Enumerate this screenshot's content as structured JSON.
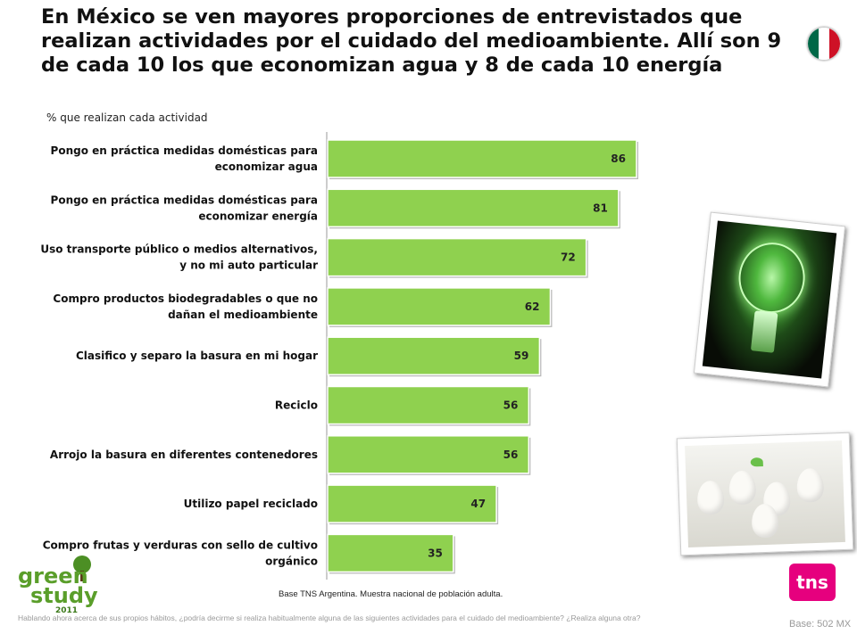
{
  "header": {
    "title": "En México se ven mayores proporciones de entrevistados que realizan actividades por el cuidado del medioambiente. Allí son 9 de cada 10 los que economizan agua y 8 de cada 10 energía",
    "subtitle": "% que realizan cada actividad"
  },
  "flag_colors": [
    "#006847",
    "#ffffff",
    "#ce1126"
  ],
  "chart_data": {
    "type": "bar",
    "orientation": "horizontal",
    "categories": [
      [
        "Pongo en práctica medidas domésticas para",
        "economizar agua"
      ],
      [
        "Pongo en práctica medidas domésticas para",
        "economizar energía"
      ],
      [
        "Uso transporte público o medios alternativos,",
        "y no mi auto particular"
      ],
      [
        "Compro productos biodegradables o que no",
        "dañan el medioambiente"
      ],
      [
        "Clasifico y separo la basura en mi hogar"
      ],
      [
        "Reciclo"
      ],
      [
        "Arrojo la basura en diferentes contenedores"
      ],
      [
        "Utilizo papel reciclado"
      ],
      [
        "Compro frutas y verduras con sello de cultivo",
        "orgánico"
      ]
    ],
    "values": [
      86,
      81,
      72,
      62,
      59,
      56,
      56,
      47,
      35
    ],
    "xlim": [
      0,
      100
    ],
    "bar_color": "#8fd14f",
    "grid": false,
    "legend": "none"
  },
  "logo": {
    "line1": "green",
    "line2": "study",
    "year": "2011"
  },
  "footer": {
    "base_note": "Base TNS Argentina. Muestra nacional de población adulta.",
    "question": "Hablando ahora acerca de sus propios hábitos, ¿podría decirme si realiza habitualmente alguna de las siguientes actividades para el cuidado del medioambiente? ¿Realiza alguna otra?",
    "base_count": "Base: 502 MX",
    "brand": "tns"
  }
}
